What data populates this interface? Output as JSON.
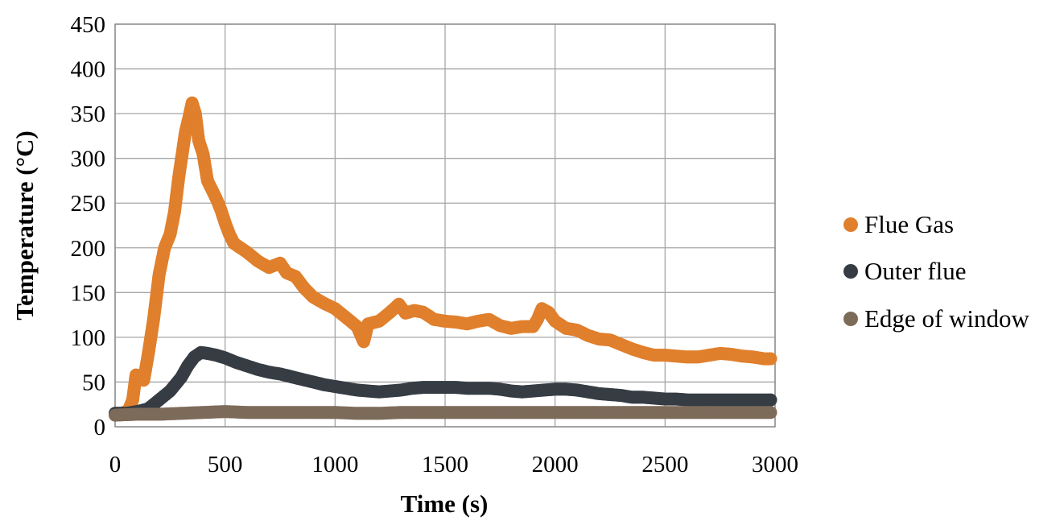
{
  "chart_data": {
    "type": "scatter",
    "xlabel": "Time (s)",
    "ylabel": "Temperature (°C)",
    "xlim": [
      0,
      3000
    ],
    "ylim": [
      0,
      450
    ],
    "xticks": [
      "0",
      "500",
      "1000",
      "1500",
      "2000",
      "2500",
      "3000"
    ],
    "yticks": [
      "0",
      "50",
      "100",
      "150",
      "200",
      "250",
      "300",
      "350",
      "400",
      "450"
    ],
    "grid": true,
    "legend_position": "right",
    "series": [
      {
        "name": "Flue Gas",
        "color": "#e07f2c",
        "points": [
          [
            0,
            15
          ],
          [
            30,
            15
          ],
          [
            60,
            18
          ],
          [
            80,
            30
          ],
          [
            95,
            58
          ],
          [
            110,
            57
          ],
          [
            130,
            52
          ],
          [
            150,
            80
          ],
          [
            175,
            120
          ],
          [
            200,
            170
          ],
          [
            225,
            200
          ],
          [
            250,
            215
          ],
          [
            270,
            240
          ],
          [
            290,
            280
          ],
          [
            305,
            305
          ],
          [
            320,
            330
          ],
          [
            335,
            345
          ],
          [
            350,
            362
          ],
          [
            365,
            350
          ],
          [
            380,
            320
          ],
          [
            400,
            305
          ],
          [
            420,
            275
          ],
          [
            440,
            265
          ],
          [
            460,
            255
          ],
          [
            480,
            243
          ],
          [
            500,
            228
          ],
          [
            520,
            215
          ],
          [
            540,
            205
          ],
          [
            570,
            200
          ],
          [
            600,
            195
          ],
          [
            650,
            185
          ],
          [
            700,
            178
          ],
          [
            750,
            183
          ],
          [
            780,
            172
          ],
          [
            820,
            168
          ],
          [
            860,
            155
          ],
          [
            900,
            145
          ],
          [
            950,
            138
          ],
          [
            1000,
            132
          ],
          [
            1050,
            122
          ],
          [
            1100,
            112
          ],
          [
            1130,
            95
          ],
          [
            1150,
            115
          ],
          [
            1200,
            118
          ],
          [
            1250,
            128
          ],
          [
            1290,
            137
          ],
          [
            1320,
            127
          ],
          [
            1360,
            130
          ],
          [
            1400,
            128
          ],
          [
            1450,
            120
          ],
          [
            1500,
            118
          ],
          [
            1550,
            117
          ],
          [
            1600,
            115
          ],
          [
            1650,
            118
          ],
          [
            1700,
            120
          ],
          [
            1750,
            113
          ],
          [
            1800,
            110
          ],
          [
            1850,
            112
          ],
          [
            1900,
            112
          ],
          [
            1920,
            120
          ],
          [
            1940,
            132
          ],
          [
            1970,
            128
          ],
          [
            2000,
            118
          ],
          [
            2050,
            110
          ],
          [
            2100,
            108
          ],
          [
            2150,
            102
          ],
          [
            2200,
            98
          ],
          [
            2250,
            97
          ],
          [
            2300,
            92
          ],
          [
            2350,
            87
          ],
          [
            2400,
            83
          ],
          [
            2450,
            80
          ],
          [
            2500,
            80
          ],
          [
            2550,
            79
          ],
          [
            2600,
            78
          ],
          [
            2650,
            78
          ],
          [
            2700,
            80
          ],
          [
            2750,
            82
          ],
          [
            2800,
            81
          ],
          [
            2850,
            79
          ],
          [
            2900,
            78
          ],
          [
            2950,
            76
          ],
          [
            2980,
            76
          ]
        ]
      },
      {
        "name": "Outer flue",
        "color": "#363c43",
        "points": [
          [
            0,
            15
          ],
          [
            50,
            15
          ],
          [
            100,
            17
          ],
          [
            150,
            20
          ],
          [
            200,
            30
          ],
          [
            250,
            40
          ],
          [
            300,
            55
          ],
          [
            330,
            68
          ],
          [
            360,
            78
          ],
          [
            390,
            83
          ],
          [
            420,
            82
          ],
          [
            460,
            80
          ],
          [
            500,
            77
          ],
          [
            550,
            72
          ],
          [
            600,
            68
          ],
          [
            650,
            64
          ],
          [
            700,
            61
          ],
          [
            750,
            59
          ],
          [
            800,
            56
          ],
          [
            850,
            53
          ],
          [
            900,
            50
          ],
          [
            950,
            47
          ],
          [
            1000,
            45
          ],
          [
            1050,
            43
          ],
          [
            1100,
            41
          ],
          [
            1150,
            40
          ],
          [
            1200,
            39
          ],
          [
            1250,
            40
          ],
          [
            1300,
            41
          ],
          [
            1350,
            43
          ],
          [
            1400,
            44
          ],
          [
            1450,
            44
          ],
          [
            1500,
            44
          ],
          [
            1550,
            44
          ],
          [
            1600,
            43
          ],
          [
            1650,
            43
          ],
          [
            1700,
            43
          ],
          [
            1750,
            42
          ],
          [
            1800,
            40
          ],
          [
            1850,
            39
          ],
          [
            1900,
            40
          ],
          [
            1950,
            41
          ],
          [
            2000,
            42
          ],
          [
            2050,
            42
          ],
          [
            2100,
            41
          ],
          [
            2150,
            39
          ],
          [
            2200,
            37
          ],
          [
            2250,
            36
          ],
          [
            2300,
            35
          ],
          [
            2350,
            33
          ],
          [
            2400,
            33
          ],
          [
            2450,
            32
          ],
          [
            2500,
            31
          ],
          [
            2550,
            31
          ],
          [
            2600,
            30
          ],
          [
            2650,
            30
          ],
          [
            2700,
            30
          ],
          [
            2750,
            30
          ],
          [
            2800,
            30
          ],
          [
            2850,
            30
          ],
          [
            2900,
            30
          ],
          [
            2950,
            30
          ],
          [
            2980,
            30
          ]
        ]
      },
      {
        "name": "Edge of window",
        "color": "#7d6b5a",
        "points": [
          [
            0,
            13
          ],
          [
            100,
            14
          ],
          [
            200,
            14
          ],
          [
            300,
            15
          ],
          [
            400,
            16
          ],
          [
            500,
            17
          ],
          [
            600,
            16
          ],
          [
            700,
            16
          ],
          [
            800,
            16
          ],
          [
            900,
            16
          ],
          [
            1000,
            16
          ],
          [
            1100,
            15
          ],
          [
            1200,
            15
          ],
          [
            1300,
            16
          ],
          [
            1400,
            16
          ],
          [
            1500,
            16
          ],
          [
            1600,
            16
          ],
          [
            1700,
            16
          ],
          [
            1800,
            16
          ],
          [
            1900,
            16
          ],
          [
            2000,
            16
          ],
          [
            2100,
            16
          ],
          [
            2200,
            16
          ],
          [
            2300,
            16
          ],
          [
            2400,
            16
          ],
          [
            2500,
            16
          ],
          [
            2600,
            16
          ],
          [
            2700,
            16
          ],
          [
            2800,
            16
          ],
          [
            2900,
            16
          ],
          [
            2980,
            16
          ]
        ]
      }
    ]
  }
}
